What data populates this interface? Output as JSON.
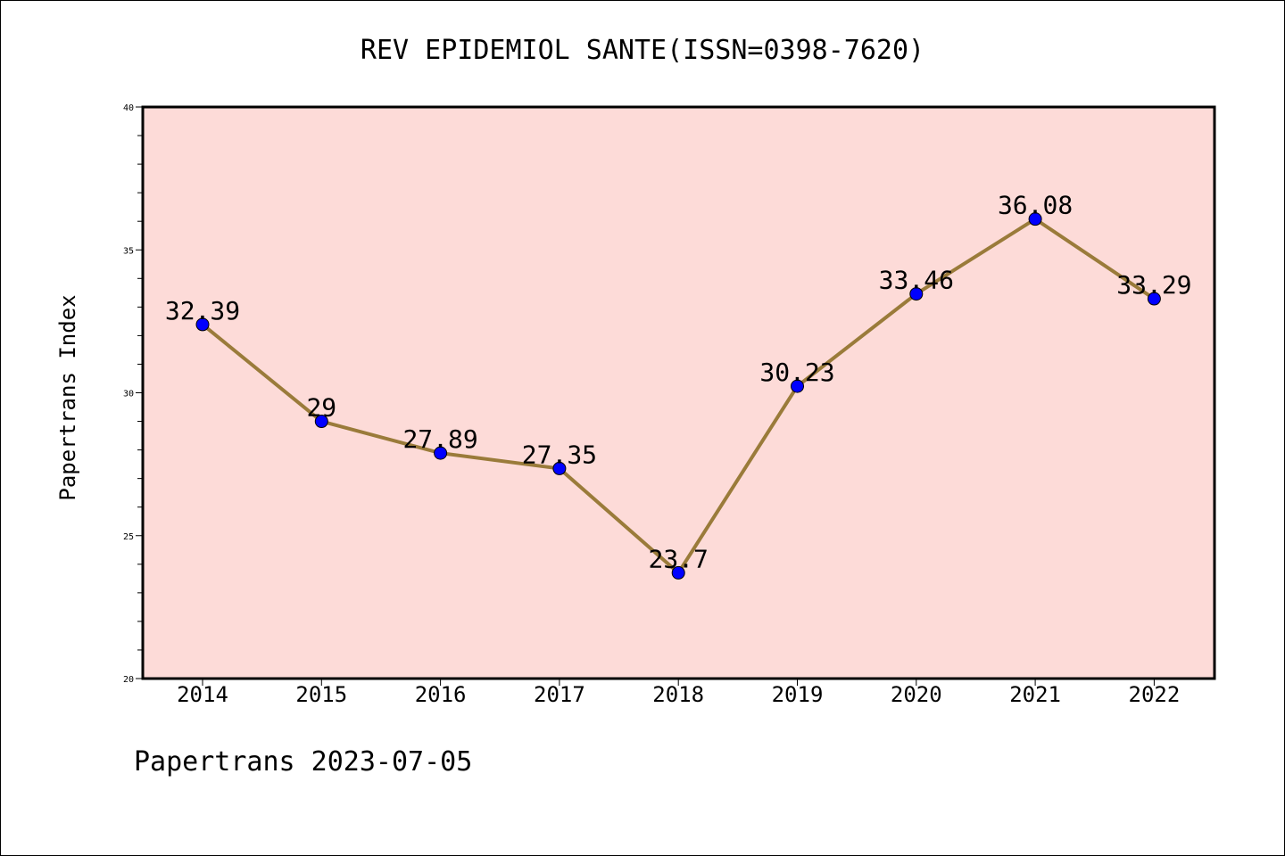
{
  "chart_data": {
    "type": "line",
    "title": "REV EPIDEMIOL SANTE(ISSN=0398-7620)",
    "xlabel": "",
    "ylabel": "Papertrans Index",
    "categories": [
      "2014",
      "2015",
      "2016",
      "2017",
      "2018",
      "2019",
      "2020",
      "2021",
      "2022"
    ],
    "series": [
      {
        "values": [
          32.39,
          29,
          27.89,
          27.35,
          23.7,
          30.23,
          33.46,
          36.08,
          33.29
        ],
        "labels": [
          "32.39",
          "29",
          "27.89",
          "27.35",
          "23.7",
          "30.23",
          "33.46",
          "36.08",
          "33.29"
        ]
      }
    ],
    "ylim": [
      20,
      40
    ],
    "yticks": [
      "20",
      "25",
      "30",
      "35",
      "40"
    ],
    "grid": false,
    "colors": {
      "plot_background": "#fddbd8",
      "line": "#9a7b3a",
      "marker": "#0000ff"
    }
  },
  "footer": "Papertrans 2023-07-05"
}
